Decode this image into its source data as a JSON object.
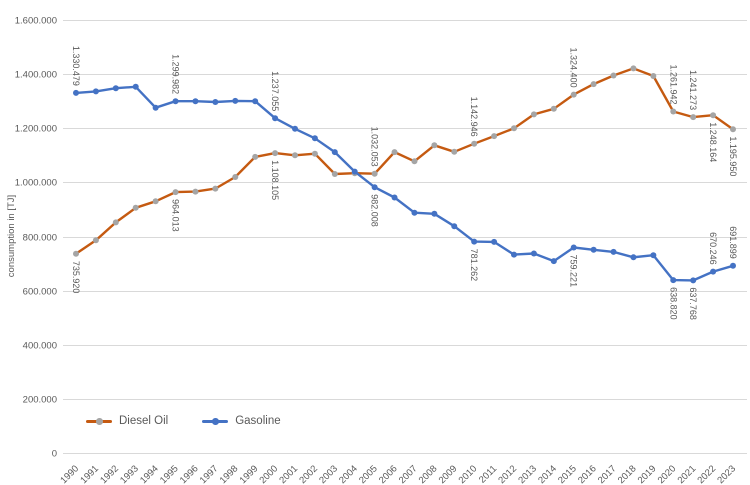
{
  "chart_data": {
    "type": "line",
    "title": "",
    "xlabel": "",
    "ylabel": "consumption in [TJ]",
    "ylim": [
      0,
      1600000
    ],
    "ytick_step": 200000,
    "ytick_labels": [
      "1.600.000",
      "1.400.000",
      "1.200.000",
      "1.000.000",
      "800.000",
      "600.000",
      "400.000",
      "200.000",
      "0"
    ],
    "grid": true,
    "legend_position": "bottom-left-inside",
    "x": [
      1990,
      1991,
      1992,
      1993,
      1994,
      1995,
      1996,
      1997,
      1998,
      1999,
      2000,
      2001,
      2002,
      2003,
      2004,
      2005,
      2006,
      2007,
      2008,
      2009,
      2010,
      2011,
      2012,
      2013,
      2014,
      2015,
      2016,
      2017,
      2018,
      2019,
      2020,
      2021,
      2022,
      2023
    ],
    "series": [
      {
        "name": "Diesel Oil",
        "color": "#C55A11",
        "marker_color": "#A5A5A5",
        "values": [
          735920,
          786000,
          852000,
          906000,
          930000,
          964013,
          966000,
          977000,
          1020000,
          1094000,
          1108105,
          1100000,
          1106000,
          1031000,
          1034000,
          1032053,
          1112000,
          1078000,
          1137000,
          1113000,
          1142946,
          1171000,
          1200000,
          1251000,
          1272000,
          1324400,
          1363000,
          1395000,
          1421000,
          1393000,
          1261942,
          1241273,
          1248164,
          1195950
        ],
        "data_labels": [
          {
            "year": 1990,
            "text": "735.920",
            "placement": "below"
          },
          {
            "year": 1995,
            "text": "964.013",
            "placement": "below"
          },
          {
            "year": 2000,
            "text": "1.108.105",
            "placement": "below"
          },
          {
            "year": 2005,
            "text": "1.032.053",
            "placement": "above"
          },
          {
            "year": 2010,
            "text": "1.142.946",
            "placement": "above"
          },
          {
            "year": 2015,
            "text": "1.324.400",
            "placement": "above"
          },
          {
            "year": 2020,
            "text": "1.261.942",
            "placement": "above"
          },
          {
            "year": 2021,
            "text": "1.241.273",
            "placement": "above"
          },
          {
            "year": 2022,
            "text": "1.248.164",
            "placement": "below"
          },
          {
            "year": 2023,
            "text": "1.195.950",
            "placement": "below"
          }
        ]
      },
      {
        "name": "Gasoline",
        "color": "#4472C4",
        "marker_color": "#4472C4",
        "values": [
          1330479,
          1336000,
          1348000,
          1353000,
          1276000,
          1299982,
          1300000,
          1297000,
          1301000,
          1300000,
          1237055,
          1198000,
          1163000,
          1112000,
          1040000,
          982008,
          944000,
          888000,
          884000,
          838000,
          781262,
          780000,
          733000,
          737000,
          709000,
          759221,
          751000,
          743000,
          723000,
          731000,
          638820,
          637768,
          670246,
          691899
        ],
        "data_labels": [
          {
            "year": 1990,
            "text": "1.330.479",
            "placement": "above"
          },
          {
            "year": 1995,
            "text": "1.299.982",
            "placement": "above"
          },
          {
            "year": 2000,
            "text": "1.237.055",
            "placement": "above"
          },
          {
            "year": 2005,
            "text": "982.008",
            "placement": "below"
          },
          {
            "year": 2010,
            "text": "781.262",
            "placement": "below"
          },
          {
            "year": 2015,
            "text": "759.221",
            "placement": "below"
          },
          {
            "year": 2020,
            "text": "638.820",
            "placement": "below"
          },
          {
            "year": 2021,
            "text": "637.768",
            "placement": "below"
          },
          {
            "year": 2022,
            "text": "670.246",
            "placement": "above"
          },
          {
            "year": 2023,
            "text": "691.899",
            "placement": "above"
          }
        ]
      }
    ]
  },
  "colors": {
    "gridline": "#D9D9D9",
    "axis_text": "#595959",
    "data_label_text": "#595959",
    "background": "#FFFFFF"
  }
}
